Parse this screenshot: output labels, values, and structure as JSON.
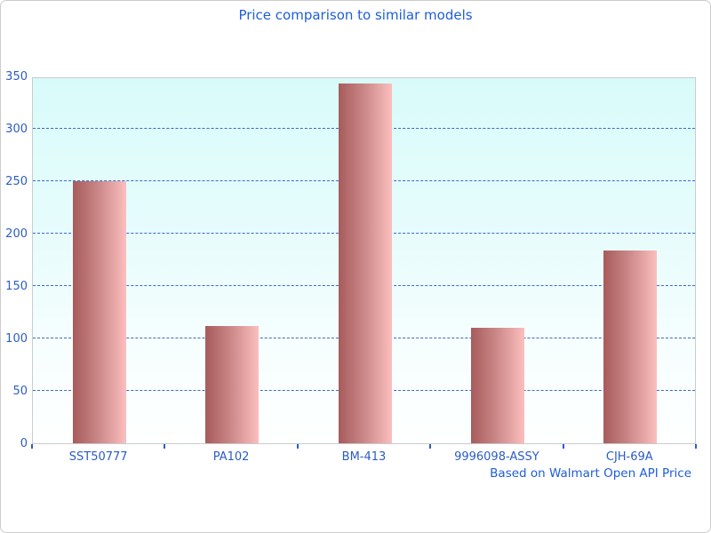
{
  "window": {
    "background": "#ffffff",
    "border_color": "#cccccc"
  },
  "chart_data": {
    "type": "bar",
    "title": "Price comparison to similar models",
    "categories": [
      "SST50777",
      "PA102",
      "BM-413",
      "9996098-ASSY",
      "CJH-69A"
    ],
    "values": [
      250,
      112,
      343,
      110,
      184
    ],
    "xlabel": "",
    "ylabel": "",
    "ylim": [
      0,
      350
    ],
    "yticks": [
      0,
      50,
      100,
      150,
      200,
      250,
      300,
      350
    ],
    "grid": "horizontal-dashed",
    "legend": "none",
    "footnote": "Based on Walmart Open API Price",
    "colors": {
      "title_text": "#1e5ed8",
      "axis_text": "#2b5cc3",
      "gridline": "#3a6acb",
      "bar_gradient_left": "#a75b5b",
      "bar_gradient_right": "#fcbebe",
      "plot_bg_top": "#d8fbfa",
      "plot_bg_bottom": "#ffffff",
      "plot_border": "#c9cccc"
    }
  }
}
